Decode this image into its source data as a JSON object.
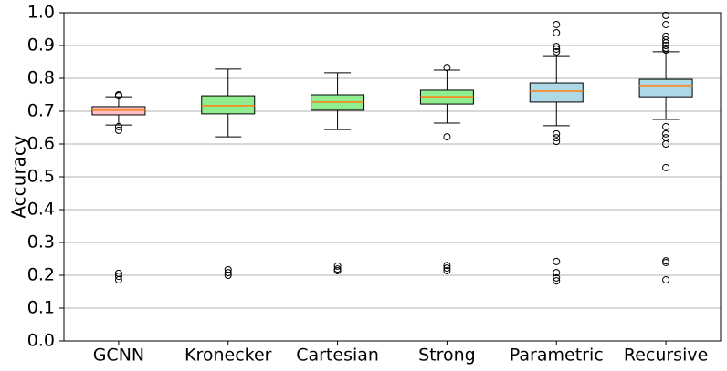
{
  "chart_data": {
    "type": "boxplot",
    "ylabel": "Accuracy",
    "categories": [
      "GCNN",
      "Kronecker",
      "Cartesian",
      "Strong",
      "Parametric",
      "Recursive"
    ],
    "boxes": [
      {
        "whislo": 0.658,
        "q1": 0.689,
        "med": 0.703,
        "q3": 0.714,
        "whishi": 0.744,
        "color": "#ffc0cb",
        "fliers": [
          0.75,
          0.747,
          0.653,
          0.642,
          0.206,
          0.197,
          0.186
        ]
      },
      {
        "whislo": 0.622,
        "q1": 0.692,
        "med": 0.717,
        "q3": 0.747,
        "whishi": 0.828,
        "color": "#90ee90",
        "fliers": [
          0.217,
          0.208,
          0.2
        ]
      },
      {
        "whislo": 0.644,
        "q1": 0.703,
        "med": 0.728,
        "q3": 0.75,
        "whishi": 0.817,
        "color": "#90ee90",
        "fliers": [
          0.228,
          0.219,
          0.214
        ]
      },
      {
        "whislo": 0.664,
        "q1": 0.722,
        "med": 0.744,
        "q3": 0.764,
        "whishi": 0.825,
        "color": "#90ee90",
        "fliers": [
          0.833,
          0.622,
          0.23,
          0.222,
          0.214
        ]
      },
      {
        "whislo": 0.656,
        "q1": 0.728,
        "med": 0.761,
        "q3": 0.786,
        "whishi": 0.869,
        "color": "#add8e6",
        "fliers": [
          0.964,
          0.939,
          0.897,
          0.889,
          0.881,
          0.631,
          0.619,
          0.608,
          0.242,
          0.208,
          0.192,
          0.183
        ]
      },
      {
        "whislo": 0.675,
        "q1": 0.744,
        "med": 0.778,
        "q3": 0.797,
        "whishi": 0.881,
        "color": "#add8e6",
        "fliers": [
          0.992,
          0.964,
          0.928,
          0.917,
          0.908,
          0.9,
          0.892,
          0.886,
          0.653,
          0.631,
          0.619,
          0.6,
          0.528,
          0.244,
          0.239,
          0.186
        ]
      }
    ],
    "median_color": "#ff7f0e",
    "ylim": [
      0,
      1
    ],
    "yticks": [
      {
        "value": 0,
        "label": "0.0"
      },
      0.1,
      0.2,
      0.3,
      0.4,
      0.5,
      0.6,
      0.7,
      0.8,
      0.9,
      {
        "value": 1,
        "label": "1.0"
      }
    ],
    "grid": true
  }
}
